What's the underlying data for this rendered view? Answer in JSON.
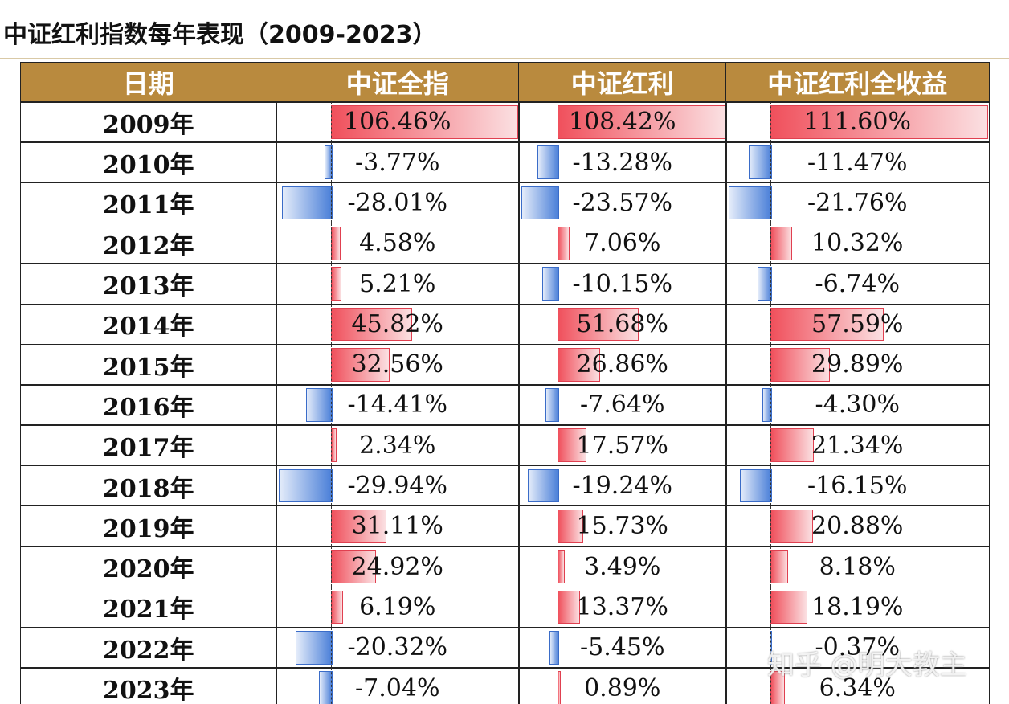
{
  "header": {
    "title": "中证红利指数每年表现（2009-2023）"
  },
  "table": {
    "date_header": "日期",
    "years": [
      "2009年",
      "2010年",
      "2011年",
      "2012年",
      "2013年",
      "2014年",
      "2015年",
      "2016年",
      "2017年",
      "2018年",
      "2019年",
      "2020年",
      "2021年",
      "2022年",
      "2023年"
    ],
    "columns": [
      {
        "header": "中证全指",
        "values": [
          106.46,
          -3.77,
          -28.01,
          4.58,
          5.21,
          45.82,
          32.56,
          -14.41,
          2.34,
          -29.94,
          31.11,
          24.92,
          6.19,
          -20.32,
          -7.04
        ],
        "value_labels": [
          "106.46%",
          "-3.77%",
          "-28.01%",
          "4.58%",
          "5.21%",
          "45.82%",
          "32.56%",
          "-14.41%",
          "2.34%",
          "-29.94%",
          "31.11%",
          "24.92%",
          "6.19%",
          "-20.32%",
          "-7.04%"
        ]
      },
      {
        "header": "中证红利",
        "values": [
          108.42,
          -13.28,
          -23.57,
          7.06,
          -10.15,
          51.68,
          26.86,
          -7.64,
          17.57,
          -19.24,
          15.73,
          3.49,
          13.37,
          -5.45,
          0.89
        ],
        "value_labels": [
          "108.42%",
          "-13.28%",
          "-23.57%",
          "7.06%",
          "-10.15%",
          "51.68%",
          "26.86%",
          "-7.64%",
          "17.57%",
          "-19.24%",
          "15.73%",
          "3.49%",
          "13.37%",
          "-5.45%",
          "0.89%"
        ]
      },
      {
        "header": "中证红利全收益",
        "values": [
          111.6,
          -11.47,
          -21.76,
          10.32,
          -6.74,
          57.59,
          29.89,
          -4.3,
          21.34,
          -16.15,
          20.88,
          8.18,
          18.19,
          -0.37,
          6.34
        ],
        "value_labels": [
          "111.60%",
          "-11.47%",
          "-21.76%",
          "10.32%",
          "-6.74%",
          "57.59%",
          "29.89%",
          "-4.30%",
          "21.34%",
          "-16.15%",
          "20.88%",
          "8.18%",
          "18.19%",
          "-0.37%",
          "6.34%"
        ]
      }
    ]
  },
  "watermark": "知乎 @明大教主"
}
